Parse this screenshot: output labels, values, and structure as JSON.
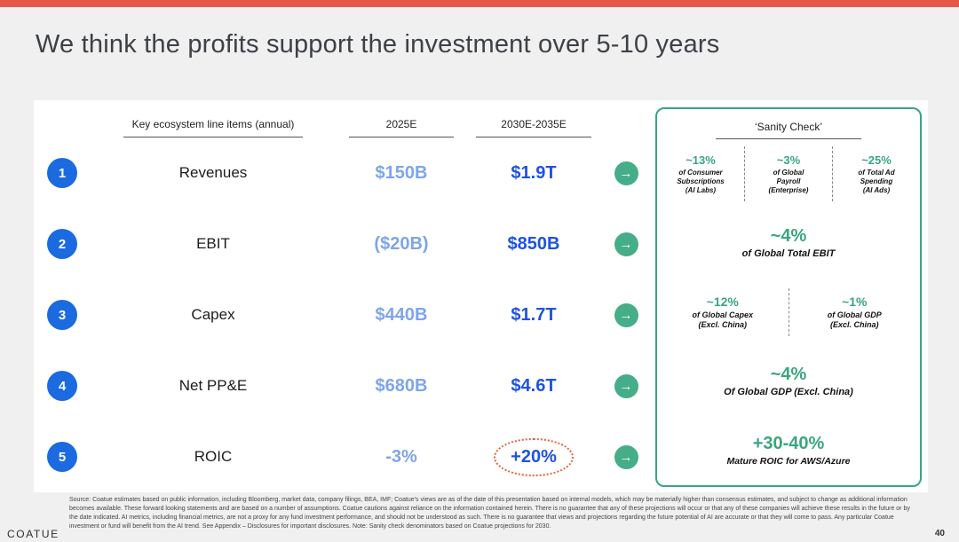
{
  "slide": {
    "title": "We think the profits support the investment over 5-10 years",
    "brand": "COATUE",
    "page_number": "40"
  },
  "colors": {
    "accent_bar": "#E8564A",
    "number_badge_blue": "#1B6AE0",
    "value_light_blue": "#7EA6E8",
    "value_dark_blue": "#1D53E0",
    "sanity_green": "#3AA57E",
    "highlight_dotted_orange": "#E8613F"
  },
  "table": {
    "headers": {
      "line_items": "Key ecosystem line items (annual)",
      "col_2025": "2025E",
      "col_2030": "2030E-2035E"
    },
    "rows": [
      {
        "num": "1",
        "label": "Revenues",
        "v2025": "$150B",
        "v2030": "$1.9T"
      },
      {
        "num": "2",
        "label": "EBIT",
        "v2025": "($20B)",
        "v2030": "$850B"
      },
      {
        "num": "3",
        "label": "Capex",
        "v2025": "$440B",
        "v2030": "$1.7T"
      },
      {
        "num": "4",
        "label": "Net PP&E",
        "v2025": "$680B",
        "v2030": "$4.6T"
      },
      {
        "num": "5",
        "label": "ROIC",
        "v2025": "-3%",
        "v2030": "+20%"
      }
    ]
  },
  "icons": {
    "arrow_right": "→"
  },
  "sanity_check": {
    "header": "‘Sanity Check’",
    "revenues": [
      {
        "pct": "~13%",
        "desc": "of Consumer\nSubscriptions\n(AI Labs)"
      },
      {
        "pct": "~3%",
        "desc": "of Global\nPayroll\n(Enterprise)"
      },
      {
        "pct": "~25%",
        "desc": "of Total Ad\nSpending\n(AI Ads)"
      }
    ],
    "ebit": {
      "pct": "~4%",
      "desc": "of Global Total EBIT"
    },
    "capex": [
      {
        "pct": "~12%",
        "desc": "of Global Capex\n(Excl. China)"
      },
      {
        "pct": "~1%",
        "desc": "of Global GDP\n(Excl. China)"
      }
    ],
    "net_ppe": {
      "pct": "~4%",
      "desc": "Of Global GDP (Excl. China)"
    },
    "roic": {
      "pct": "+30-40%",
      "desc": "Mature ROIC for AWS/Azure"
    }
  },
  "footer": {
    "disclaimer": "Source: Coatue estimates based on public information, including Bloomberg, market data, company filings, BEA, IMF; Coatue's views are as of the date of this presentation based on internal models, which may be materially higher than consensus estimates, and subject to change as additional information becomes available. These forward looking statements and are based on a number of assumptions. Coatue cautions against reliance on the information contained herein. There is no guarantee that any of these projections will occur or that any of these companies will achieve these results in the future or by the date indicated. AI metrics, including financial metrics, are not a proxy for any fund investment performance, and should not be understood as such. There is no guarantee that views and projections regarding the future potential of AI are accurate or that they will come to pass. Any particular Coatue investment or fund will benefit from the AI trend. See Appendix – Disclosures for important disclosures. Note: Sanity check denominators based on Coatue projections for 2030."
  }
}
